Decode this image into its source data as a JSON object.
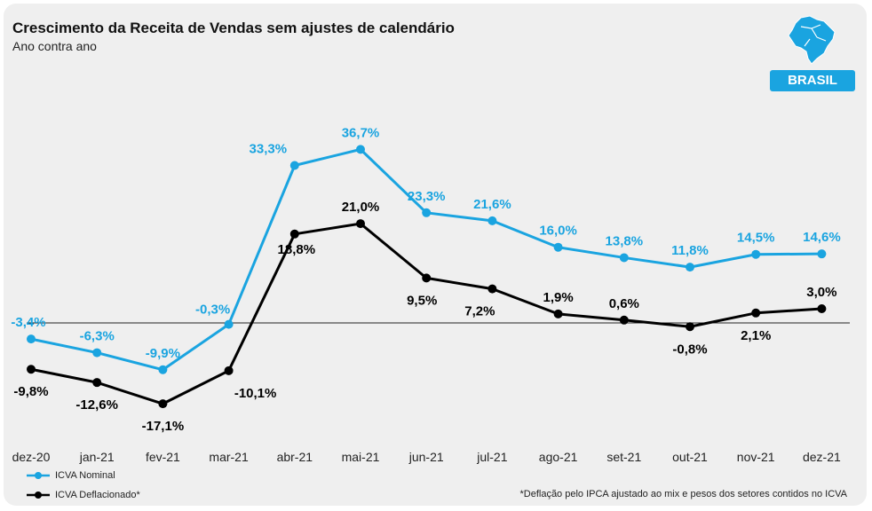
{
  "header": {
    "title": "Crescimento da Receita de Vendas sem ajustes de calendário",
    "subtitle": "Ano contra ano"
  },
  "badge": {
    "label": "BRASIL",
    "icon": "brazil-map-icon"
  },
  "footnote": "*Deflação pelo IPCA ajustado ao mix e pesos dos setores contidos no ICVA",
  "colors": {
    "nominal": "#1aa4e0",
    "deflated": "#000000",
    "background": "#efefef"
  },
  "chart_data": {
    "type": "line",
    "title": "Crescimento da Receita de Vendas sem ajustes de calendário",
    "subtitle": "Ano contra ano",
    "categories": [
      "dez-20",
      "jan-21",
      "fev-21",
      "mar-21",
      "abr-21",
      "mai-21",
      "jun-21",
      "jul-21",
      "ago-21",
      "set-21",
      "out-21",
      "nov-21",
      "dez-21"
    ],
    "series": [
      {
        "name": "ICVA Nominal",
        "color": "#1aa4e0",
        "values": [
          -3.4,
          -6.3,
          -9.9,
          -0.3,
          33.3,
          36.7,
          23.3,
          21.6,
          16.0,
          13.8,
          11.8,
          14.5,
          14.6
        ],
        "labels": [
          "-3,4%",
          "-6,3%",
          "-9,9%",
          "-0,3%",
          "33,3%",
          "36,7%",
          "23,3%",
          "21,6%",
          "16,0%",
          "13,8%",
          "11,8%",
          "14,5%",
          "14,6%"
        ]
      },
      {
        "name": "ICVA Deflacionado*",
        "color": "#000000",
        "values": [
          -9.8,
          -12.6,
          -17.1,
          -10.1,
          18.8,
          21.0,
          9.5,
          7.2,
          1.9,
          0.6,
          -0.8,
          2.1,
          3.0
        ],
        "labels": [
          "-9,8%",
          "-12,6%",
          "-17,1%",
          "-10,1%",
          "18,8%",
          "21,0%",
          "9,5%",
          "7,2%",
          "1,9%",
          "0,6%",
          "-0,8%",
          "2,1%",
          "3,0%"
        ]
      }
    ],
    "ylim": [
      -28,
      45
    ],
    "zero_line": true,
    "grid": false,
    "legend": "bottom-left"
  }
}
